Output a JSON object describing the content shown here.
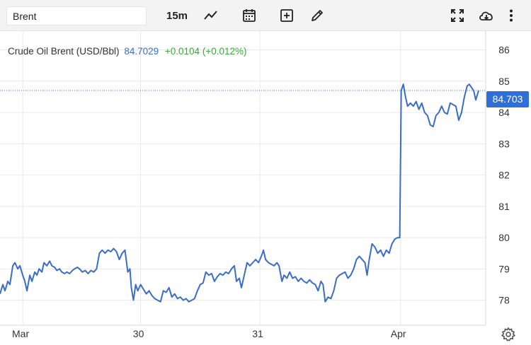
{
  "toolbar": {
    "symbol_value": "Brent",
    "interval_label": "15m",
    "icons": [
      "line-chart-icon",
      "calendar-icon",
      "add-indicator-icon",
      "draw-pencil-icon",
      "fullscreen-icon",
      "cloud-download-icon",
      "more-menu-icon"
    ]
  },
  "legend": {
    "name": "Crude Oil Brent (USD/Bbl)",
    "price": "84.7029",
    "change": "+0.0104 (+0.012%)"
  },
  "price_tag": "84.703",
  "colors": {
    "line": "#3a6dc9",
    "price_tag": "#2f6fd8",
    "positive": "#3ba93b",
    "grid": "#e9e9e9"
  },
  "chart_data": {
    "type": "line",
    "title": "",
    "xlabel": "",
    "ylabel": "",
    "x_ticks": [
      {
        "label": "Mar",
        "t": 32
      },
      {
        "label": "30",
        "t": 198
      },
      {
        "label": "31",
        "t": 366
      },
      {
        "label": "Apr",
        "t": 564
      }
    ],
    "x_range": [
      0,
      684
    ],
    "ylim": [
      77.2,
      86.6
    ],
    "y_ticks": [
      78,
      79,
      80,
      81,
      82,
      83,
      84,
      85,
      86
    ],
    "grid": true,
    "last_price": 84.703,
    "series": [
      {
        "values": [
          [
            0,
            78.2
          ],
          [
            4,
            78.5
          ],
          [
            7,
            78.3
          ],
          [
            11,
            78.6
          ],
          [
            14,
            78.5
          ],
          [
            18,
            79.1
          ],
          [
            21,
            79.2
          ],
          [
            25,
            79.0
          ],
          [
            28,
            79.1
          ],
          [
            32,
            78.8
          ],
          [
            35,
            78.6
          ],
          [
            38,
            78.3
          ],
          [
            42,
            78.8
          ],
          [
            45,
            78.6
          ],
          [
            49,
            78.9
          ],
          [
            52,
            78.8
          ],
          [
            55,
            79.0
          ],
          [
            59,
            78.9
          ],
          [
            62,
            79.2
          ],
          [
            66,
            79.1
          ],
          [
            70,
            79.25
          ],
          [
            73,
            79.1
          ],
          [
            77,
            79.05
          ],
          [
            80,
            78.95
          ],
          [
            84,
            79.0
          ],
          [
            87,
            78.9
          ],
          [
            91,
            78.85
          ],
          [
            94,
            78.9
          ],
          [
            98,
            78.85
          ],
          [
            102,
            78.95
          ],
          [
            105,
            79.0
          ],
          [
            109,
            79.05
          ],
          [
            112,
            79.0
          ],
          [
            116,
            78.9
          ],
          [
            120,
            78.95
          ],
          [
            124,
            78.85
          ],
          [
            128,
            78.95
          ],
          [
            132,
            78.9
          ],
          [
            136,
            79.0
          ],
          [
            140,
            79.5
          ],
          [
            144,
            79.6
          ],
          [
            148,
            79.5
          ],
          [
            152,
            79.6
          ],
          [
            156,
            79.55
          ],
          [
            160,
            79.65
          ],
          [
            164,
            79.55
          ],
          [
            168,
            79.3
          ],
          [
            172,
            79.5
          ],
          [
            176,
            79.6
          ],
          [
            180,
            78.9
          ],
          [
            183,
            79.0
          ],
          [
            185,
            78.4
          ],
          [
            188,
            78.0
          ],
          [
            191,
            78.5
          ],
          [
            194,
            78.3
          ],
          [
            198,
            78.5
          ],
          [
            202,
            78.35
          ],
          [
            206,
            78.2
          ],
          [
            210,
            78.3
          ],
          [
            214,
            78.15
          ],
          [
            218,
            78.05
          ],
          [
            222,
            78.0
          ],
          [
            226,
            77.95
          ],
          [
            230,
            78.3
          ],
          [
            234,
            78.25
          ],
          [
            238,
            78.4
          ],
          [
            242,
            78.1
          ],
          [
            246,
            78.2
          ],
          [
            250,
            78.05
          ],
          [
            254,
            78.1
          ],
          [
            258,
            78.0
          ],
          [
            262,
            78.05
          ],
          [
            266,
            77.95
          ],
          [
            270,
            78.0
          ],
          [
            274,
            78.05
          ],
          [
            278,
            78.3
          ],
          [
            282,
            78.5
          ],
          [
            286,
            78.55
          ],
          [
            290,
            78.9
          ],
          [
            294,
            78.8
          ],
          [
            298,
            78.85
          ],
          [
            302,
            78.6
          ],
          [
            306,
            78.75
          ],
          [
            310,
            78.85
          ],
          [
            314,
            78.8
          ],
          [
            318,
            78.9
          ],
          [
            322,
            78.85
          ],
          [
            326,
            79.0
          ],
          [
            330,
            79.1
          ],
          [
            333,
            78.6
          ],
          [
            337,
            78.7
          ],
          [
            340,
            78.4
          ],
          [
            344,
            78.8
          ],
          [
            348,
            79.2
          ],
          [
            352,
            79.1
          ],
          [
            356,
            79.2
          ],
          [
            360,
            79.3
          ],
          [
            364,
            79.2
          ],
          [
            368,
            79.4
          ],
          [
            371,
            79.6
          ],
          [
            374,
            79.3
          ],
          [
            378,
            79.2
          ],
          [
            382,
            79.15
          ],
          [
            386,
            79.1
          ],
          [
            390,
            79.2
          ],
          [
            393,
            79.1
          ],
          [
            397,
            78.6
          ],
          [
            400,
            78.8
          ],
          [
            404,
            78.7
          ],
          [
            408,
            78.9
          ],
          [
            412,
            78.7
          ],
          [
            416,
            78.75
          ],
          [
            420,
            78.6
          ],
          [
            424,
            78.7
          ],
          [
            428,
            78.6
          ],
          [
            432,
            78.55
          ],
          [
            436,
            78.65
          ],
          [
            440,
            78.55
          ],
          [
            444,
            78.5
          ],
          [
            448,
            78.3
          ],
          [
            452,
            78.6
          ],
          [
            455,
            78.5
          ],
          [
            458,
            77.95
          ],
          [
            462,
            78.1
          ],
          [
            466,
            78.05
          ],
          [
            470,
            78.3
          ],
          [
            474,
            78.7
          ],
          [
            478,
            78.8
          ],
          [
            482,
            78.85
          ],
          [
            486,
            78.9
          ],
          [
            490,
            78.7
          ],
          [
            494,
            78.8
          ],
          [
            498,
            79.0
          ],
          [
            502,
            79.3
          ],
          [
            506,
            79.4
          ],
          [
            510,
            79.3
          ],
          [
            514,
            79.2
          ],
          [
            517,
            78.8
          ],
          [
            520,
            79.3
          ],
          [
            524,
            79.8
          ],
          [
            528,
            79.7
          ],
          [
            532,
            79.5
          ],
          [
            536,
            79.6
          ],
          [
            540,
            79.4
          ],
          [
            544,
            79.6
          ],
          [
            548,
            79.5
          ],
          [
            552,
            79.8
          ],
          [
            556,
            79.95
          ],
          [
            560,
            80.0
          ],
          [
            563,
            80.0
          ],
          [
            565,
            84.7
          ],
          [
            568,
            84.9
          ],
          [
            571,
            84.5
          ],
          [
            574,
            84.2
          ],
          [
            578,
            84.3
          ],
          [
            582,
            84.2
          ],
          [
            586,
            84.35
          ],
          [
            590,
            84.1
          ],
          [
            594,
            84.3
          ],
          [
            598,
            84.0
          ],
          [
            602,
            83.9
          ],
          [
            606,
            83.6
          ],
          [
            610,
            83.55
          ],
          [
            614,
            83.9
          ],
          [
            618,
            84.0
          ],
          [
            622,
            84.2
          ],
          [
            626,
            84.0
          ],
          [
            630,
            83.95
          ],
          [
            634,
            84.3
          ],
          [
            638,
            84.25
          ],
          [
            642,
            84.2
          ],
          [
            646,
            83.75
          ],
          [
            650,
            84.0
          ],
          [
            654,
            84.5
          ],
          [
            658,
            84.85
          ],
          [
            661,
            84.9
          ],
          [
            664,
            84.8
          ],
          [
            667,
            84.7
          ],
          [
            670,
            84.4
          ],
          [
            674,
            84.7
          ]
        ]
      }
    ]
  }
}
